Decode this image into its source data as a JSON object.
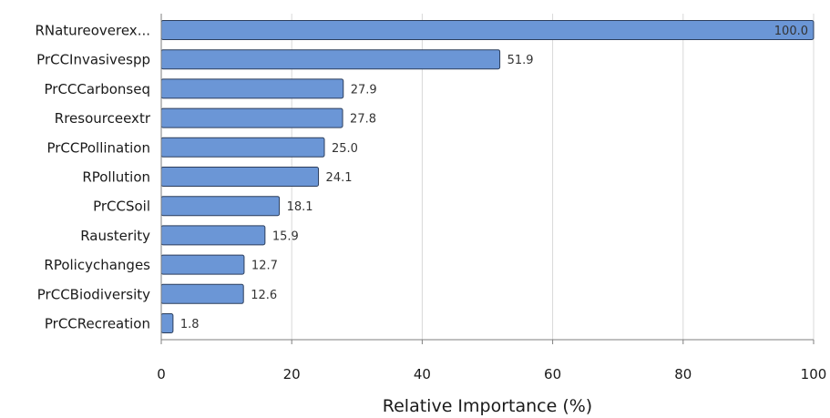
{
  "chart_data": {
    "type": "bar",
    "orientation": "horizontal",
    "categories": [
      "RNatureoverex...",
      "PrCCInvasivespp",
      "PrCCCarbonseq",
      "Rresourceextr",
      "PrCCPollination",
      "RPollution",
      "PrCCSoil",
      "Rausterity",
      "RPolicychanges",
      "PrCCBiodiversity",
      "PrCCRecreation"
    ],
    "values": [
      100.0,
      51.9,
      27.9,
      27.8,
      25.0,
      24.1,
      18.1,
      15.9,
      12.7,
      12.6,
      1.8
    ],
    "value_labels": [
      "100.0",
      "51.9",
      "27.9",
      "27.8",
      "25.0",
      "24.1",
      "18.1",
      "15.9",
      "12.7",
      "12.6",
      "1.8"
    ],
    "title": "",
    "xlabel": "Relative Importance (%)",
    "ylabel": "",
    "xlim": [
      0,
      100
    ],
    "xticks": [
      0,
      20,
      40,
      60,
      80,
      100
    ],
    "xtick_labels": [
      "0",
      "20",
      "40",
      "60",
      "80",
      "100"
    ],
    "grid": "vertical",
    "colors": {
      "bar_fill": "#6b96d6",
      "bar_stroke": "#2c3e5c",
      "grid": "#d9d9d9",
      "axis": "#7f7f7f",
      "inside_label": "#ffffff"
    }
  }
}
